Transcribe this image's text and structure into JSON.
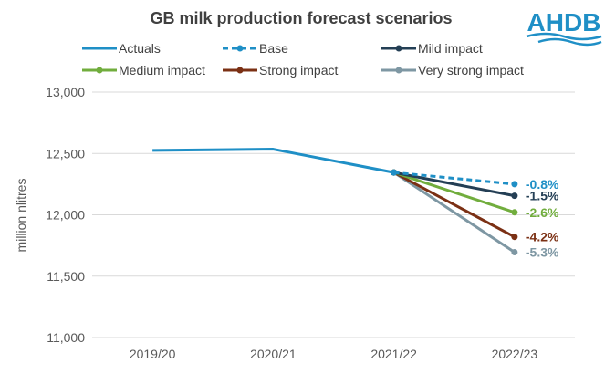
{
  "chart_data": {
    "type": "line",
    "title": "GB milk production forecast scenarios",
    "logo": "AHDB",
    "ylabel": "million nlitres",
    "xlabel": "",
    "categories": [
      "2019/20",
      "2020/21",
      "2021/22",
      "2022/23"
    ],
    "ylim": [
      11000,
      13000
    ],
    "yticks": [
      11000,
      11500,
      12000,
      12500,
      13000
    ],
    "ytick_labels": [
      "11,000",
      "11,500",
      "12,000",
      "12,500",
      "13,000"
    ],
    "grid": "horizontal",
    "legend_position": "top",
    "series": [
      {
        "name": "Actuals",
        "color": "#1f8fc6",
        "style": "solid",
        "marker": false,
        "values": [
          12525,
          12535,
          12345,
          null
        ],
        "annotation": ""
      },
      {
        "name": "Base",
        "color": "#1f8fc6",
        "style": "dashed",
        "marker": true,
        "values": [
          null,
          null,
          12345,
          12250
        ],
        "annotation": "-0.8%"
      },
      {
        "name": "Mild impact",
        "color": "#243f55",
        "style": "solid",
        "marker": true,
        "values": [
          null,
          null,
          12345,
          12155
        ],
        "annotation": "-1.5%"
      },
      {
        "name": "Medium impact",
        "color": "#71ad3d",
        "style": "solid",
        "marker": true,
        "values": [
          null,
          null,
          12345,
          12020
        ],
        "annotation": "-2.6%"
      },
      {
        "name": "Strong impact",
        "color": "#7b3014",
        "style": "solid",
        "marker": true,
        "values": [
          null,
          null,
          12345,
          11820
        ],
        "annotation": "-4.2%"
      },
      {
        "name": "Very strong impact",
        "color": "#7e97a3",
        "style": "solid",
        "marker": true,
        "values": [
          null,
          null,
          12345,
          11695
        ],
        "annotation": "-5.3%"
      }
    ]
  },
  "colors": {
    "title": "#404040",
    "text": "#595959",
    "grid": "#d9d9d9",
    "logo": "#1f8fc6"
  }
}
